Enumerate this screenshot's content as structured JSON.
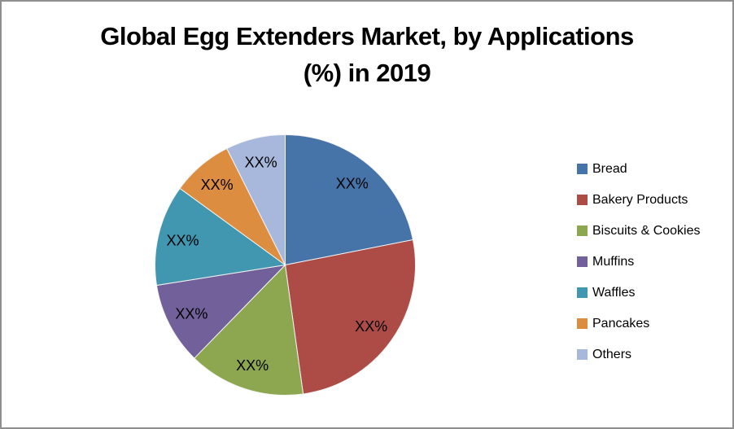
{
  "canvas": {
    "background": "#FFFFFF",
    "border_color": "#8F8F8F"
  },
  "chart": {
    "title_line1": "Global Egg Extenders Market, by Applications",
    "title_line2": "(%) in 2019"
  },
  "chart_data": {
    "type": "pie",
    "title": "Global Egg Extenders Market, by Applications (%) in 2019",
    "start_angle_deg": 0,
    "direction": "clockwise",
    "legend_position": "right",
    "slices": [
      {
        "label": "Bread",
        "data_label": "XX%",
        "value_pct": 21.9,
        "color": "#4674A9"
      },
      {
        "label": "Bakery Products",
        "data_label": "XX%",
        "value_pct": 25.9,
        "color": "#AD4B47"
      },
      {
        "label": "Biscuits & Cookies",
        "data_label": "XX%",
        "value_pct": 14.5,
        "color": "#8DA650"
      },
      {
        "label": "Muffins",
        "data_label": "XX%",
        "value_pct": 10.2,
        "color": "#72609B"
      },
      {
        "label": "Waffles",
        "data_label": "XX%",
        "value_pct": 12.5,
        "color": "#4197B0"
      },
      {
        "label": "Pancakes",
        "data_label": "XX%",
        "value_pct": 7.6,
        "color": "#DC8D40"
      },
      {
        "label": "Others",
        "data_label": "XX%",
        "value_pct": 7.4,
        "color": "#A8B7DC"
      }
    ]
  }
}
